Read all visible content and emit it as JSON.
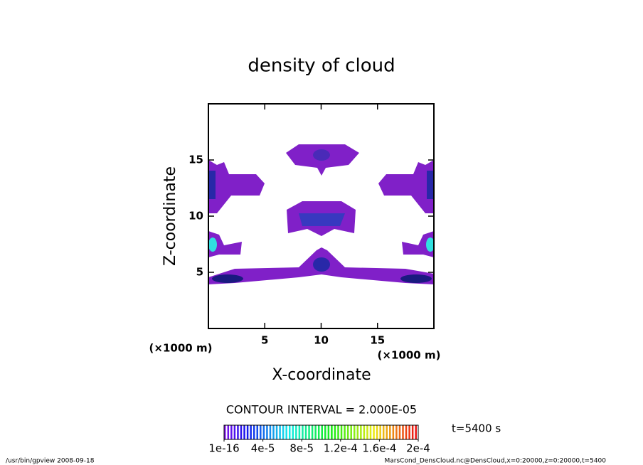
{
  "chart_data": {
    "type": "contour",
    "title": "density of cloud",
    "x_label": "X-coordinate",
    "y_label": "Z-coordinate",
    "x_unit": "(×1000 m)",
    "y_unit": "(×1000 m)",
    "xlim": [
      0,
      20
    ],
    "ylim": [
      0,
      20
    ],
    "xticks": [
      5,
      10,
      15
    ],
    "yticks": [
      5,
      10,
      15
    ],
    "contour_interval": "CONTOUR INTERVAL = 2.000E-05",
    "colorbar_lim": [
      0,
      0.0002
    ],
    "colorbar_ticks": [
      {
        "value": 1e-16,
        "label": "1e-16"
      },
      {
        "value": 4e-05,
        "label": "4e-5"
      },
      {
        "value": 8e-05,
        "label": "8e-5"
      },
      {
        "value": 0.00012,
        "label": "1.2e-4"
      },
      {
        "value": 0.00016,
        "label": "1.6e-4"
      },
      {
        "value": 0.0002,
        "label": "2e-4"
      }
    ],
    "time_label": "t=5400 s",
    "footer_left": "/usr/bin/gpview   2008-09-18",
    "footer_right": "MarsCond_DensCloud.nc@DensCloud,x=0:20000,z=0:20000,t=5400"
  }
}
